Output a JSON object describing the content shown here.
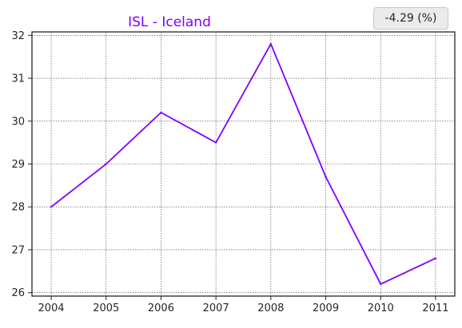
{
  "chart_data": {
    "type": "line",
    "title": "ISL - Iceland",
    "xlabel": "",
    "ylabel": "",
    "x": [
      2004,
      2005,
      2006,
      2007,
      2008,
      2009,
      2010,
      2011
    ],
    "series": [
      {
        "values": [
          28.0,
          29.0,
          30.2,
          29.5,
          31.8,
          28.7,
          26.2,
          26.8
        ]
      }
    ],
    "xticks": [
      "2004",
      "2005",
      "2006",
      "2007",
      "2008",
      "2009",
      "2010",
      "2011"
    ],
    "yticks": [
      "26",
      "27",
      "28",
      "29",
      "30",
      "31",
      "32"
    ],
    "xlim": [
      2003.65,
      2011.35
    ],
    "ylim": [
      25.92,
      32.08
    ],
    "grid": true,
    "line_color": "#8000ff",
    "title_color": "#8000ff"
  },
  "badge": {
    "text": "-4.29 (%)"
  }
}
